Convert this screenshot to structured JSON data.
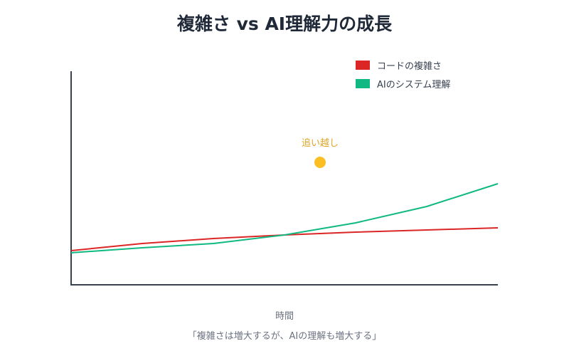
{
  "chart_data": {
    "type": "line",
    "title": "複雑さ vs AI理解力の成長",
    "xlabel": "時間",
    "ylabel": "",
    "caption": "「複雑さは増大するが、AIの理解も増大する」",
    "x": [
      0,
      1,
      2,
      3,
      4,
      5,
      6
    ],
    "xlim": [
      0,
      6
    ],
    "ylim": [
      0,
      300
    ],
    "grid": false,
    "legend_position": "top-right",
    "series": [
      {
        "name": "コードの複雑さ",
        "color": "#dc2626",
        "values": [
          48,
          58,
          65,
          70,
          74,
          77,
          80
        ]
      },
      {
        "name": "AIのシステム理解",
        "color": "#10b981",
        "values": [
          45,
          52,
          58,
          70,
          87,
          110,
          142
        ]
      }
    ],
    "annotation": {
      "text": "追い越し",
      "x": 3.5,
      "y": 172,
      "color": "#fbbf24",
      "text_color": "#e0a526"
    }
  }
}
